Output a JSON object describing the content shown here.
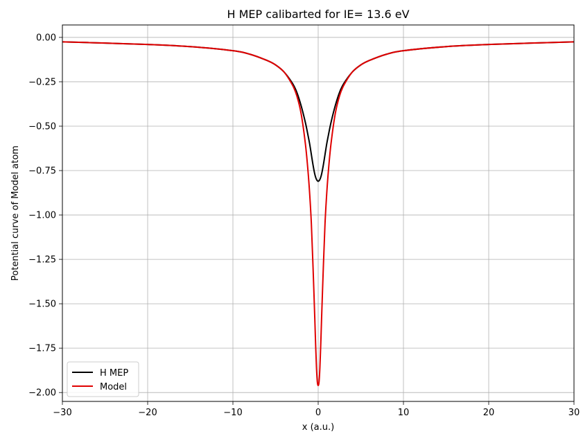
{
  "chart_data": {
    "type": "line",
    "title": "H MEP calibarted for IE= 13.6 eV",
    "xlabel": "x (a.u.)",
    "ylabel": "Potential curve of Model atom",
    "xlim": [
      -30,
      30
    ],
    "ylim": [
      -2.05,
      0.07
    ],
    "xticks": [
      -30,
      -20,
      -10,
      0,
      10,
      20,
      30
    ],
    "xtick_labels": [
      "−30",
      "−20",
      "−10",
      "0",
      "10",
      "20",
      "30"
    ],
    "yticks": [
      0.0,
      -0.25,
      -0.5,
      -0.75,
      -1.0,
      -1.25,
      -1.5,
      -1.75,
      -2.0
    ],
    "ytick_labels": [
      "0.00",
      "−0.25",
      "−0.50",
      "−0.75",
      "−1.00",
      "−1.25",
      "−1.50",
      "−1.75",
      "−2.00"
    ],
    "grid": true,
    "legend_position": "lower-left",
    "series": [
      {
        "name": "H MEP",
        "color": "#000000",
        "x": [
          -30,
          -25,
          -20,
          -15,
          -10,
          -8,
          -6,
          -5,
          -4,
          -3,
          -2.5,
          -2,
          -1.5,
          -1.2,
          -1,
          -0.8,
          -0.6,
          -0.4,
          -0.2,
          0,
          0.2,
          0.4,
          0.6,
          0.8,
          1,
          1.2,
          1.5,
          2,
          2.5,
          3,
          4,
          5,
          6,
          8,
          10,
          15,
          20,
          25,
          30
        ],
        "y": [
          -0.025,
          -0.032,
          -0.04,
          -0.052,
          -0.075,
          -0.095,
          -0.13,
          -0.155,
          -0.195,
          -0.26,
          -0.31,
          -0.385,
          -0.48,
          -0.55,
          -0.6,
          -0.66,
          -0.72,
          -0.77,
          -0.8,
          -0.81,
          -0.8,
          -0.77,
          -0.72,
          -0.66,
          -0.6,
          -0.55,
          -0.48,
          -0.385,
          -0.31,
          -0.26,
          -0.195,
          -0.155,
          -0.13,
          -0.095,
          -0.075,
          -0.052,
          -0.04,
          -0.032,
          -0.025
        ]
      },
      {
        "name": "Model",
        "color": "#e00000",
        "x": [
          -30,
          -25,
          -20,
          -15,
          -10,
          -8,
          -6,
          -5,
          -4,
          -3,
          -2.5,
          -2,
          -1.5,
          -1.2,
          -1,
          -0.8,
          -0.6,
          -0.4,
          -0.3,
          -0.2,
          -0.1,
          0,
          0.1,
          0.2,
          0.3,
          0.4,
          0.6,
          0.8,
          1,
          1.2,
          1.5,
          2,
          2.5,
          3,
          4,
          5,
          6,
          8,
          10,
          15,
          20,
          25,
          30
        ],
        "y": [
          -0.025,
          -0.032,
          -0.04,
          -0.052,
          -0.075,
          -0.095,
          -0.13,
          -0.155,
          -0.195,
          -0.27,
          -0.33,
          -0.43,
          -0.6,
          -0.75,
          -0.88,
          -1.05,
          -1.3,
          -1.58,
          -1.73,
          -1.86,
          -1.94,
          -1.96,
          -1.94,
          -1.86,
          -1.73,
          -1.58,
          -1.3,
          -1.05,
          -0.88,
          -0.75,
          -0.6,
          -0.43,
          -0.33,
          -0.27,
          -0.195,
          -0.155,
          -0.13,
          -0.095,
          -0.075,
          -0.052,
          -0.04,
          -0.032,
          -0.025
        ]
      }
    ]
  }
}
